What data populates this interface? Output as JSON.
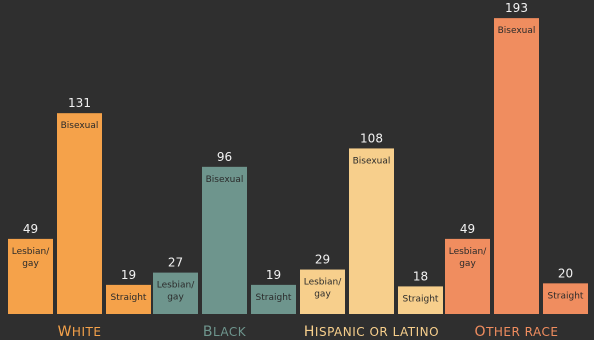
{
  "chart_data": {
    "type": "bar",
    "categories": [
      "Lesbian/gay",
      "Bisexual",
      "Straight"
    ],
    "groups": [
      {
        "name": "White",
        "label_first": "W",
        "label_rest": "HITE",
        "color": "#f5a24a",
        "values": [
          49,
          131,
          19
        ],
        "labels": [
          "Lesbian/ gay",
          "Bisexual",
          "Straight"
        ]
      },
      {
        "name": "Black",
        "label_first": "B",
        "label_rest": "LACK",
        "color": "#6e958d",
        "values": [
          27,
          96,
          19
        ],
        "labels": [
          "Lesbian/ gay",
          "Bisexual",
          "Straight"
        ]
      },
      {
        "name": "Hispanic or Latino",
        "label_first": "H",
        "label_rest": "ISPANIC OR LATINO",
        "color": "#f7cf8c",
        "values": [
          29,
          108,
          18
        ],
        "labels": [
          "Lesbian/ gay",
          "Bisexual",
          "Straight"
        ]
      },
      {
        "name": "Other race",
        "label_first": "O",
        "label_rest": "THER RACE",
        "color": "#f08d5f",
        "values": [
          49,
          193,
          20
        ],
        "labels": [
          "Lesbian/ gay",
          "Bisexual",
          "Straight"
        ]
      }
    ],
    "ylim": [
      0,
      200
    ],
    "grid": false,
    "title": "",
    "xlabel": "",
    "ylabel": ""
  }
}
